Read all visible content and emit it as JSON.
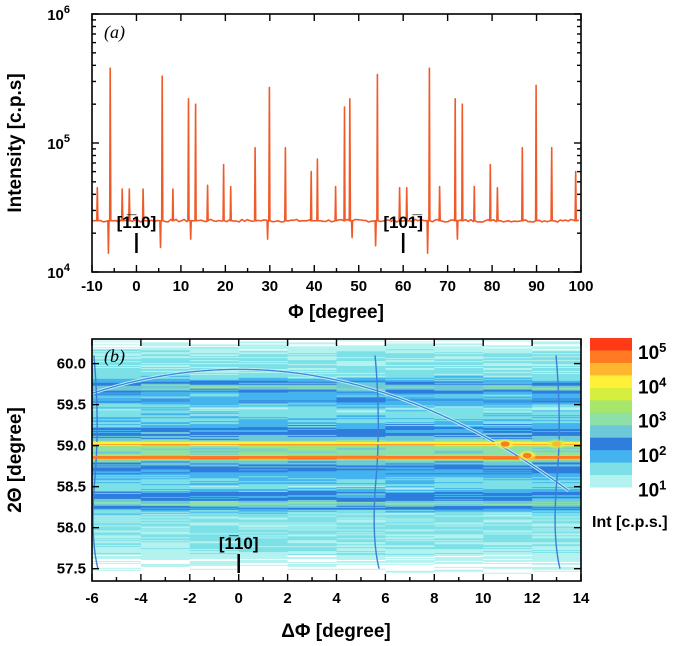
{
  "chart_data": [
    {
      "type": "line",
      "panel_label": "(a)",
      "xlabel": "Φ [degree]",
      "ylabel": "Intensity [c.p.s]",
      "xlim": [
        -10,
        100
      ],
      "ylim": [
        10000,
        1000000
      ],
      "yscale": "log",
      "x_ticks": [
        -10,
        0,
        10,
        20,
        30,
        40,
        50,
        60,
        70,
        80,
        90,
        100
      ],
      "x_tick_labels": [
        "-10",
        "0",
        "10",
        "20",
        "30",
        "40",
        "50",
        "60",
        "70",
        "80",
        "90",
        "100"
      ],
      "y_ticks": [
        10000,
        100000,
        1000000
      ],
      "y_tick_bases": [
        "10",
        "10",
        "10"
      ],
      "y_tick_exponents": [
        "4",
        "5",
        "6"
      ],
      "line_color": "#f05a28",
      "baseline": 25000,
      "series": [
        {
          "name": "phi-scan",
          "peaks": [
            {
              "x": -8.8,
              "y": 45000
            },
            {
              "x": -5.9,
              "y": 380000
            },
            {
              "x": -3.2,
              "y": 44000
            },
            {
              "x": -1.6,
              "y": 44000
            },
            {
              "x": 1.5,
              "y": 44000
            },
            {
              "x": 5.8,
              "y": 330000
            },
            {
              "x": 8.2,
              "y": 44000
            },
            {
              "x": 11.7,
              "y": 220000
            },
            {
              "x": 13.3,
              "y": 200000
            },
            {
              "x": 16.0,
              "y": 47000
            },
            {
              "x": 19.6,
              "y": 68000
            },
            {
              "x": 21.2,
              "y": 46000
            },
            {
              "x": 26.7,
              "y": 92000
            },
            {
              "x": 29.9,
              "y": 270000
            },
            {
              "x": 33.5,
              "y": 92000
            },
            {
              "x": 39.3,
              "y": 60000
            },
            {
              "x": 40.7,
              "y": 75000
            },
            {
              "x": 44.8,
              "y": 46000
            },
            {
              "x": 46.8,
              "y": 190000
            },
            {
              "x": 48.0,
              "y": 220000
            },
            {
              "x": 54.2,
              "y": 340000
            },
            {
              "x": 59.2,
              "y": 45000
            },
            {
              "x": 60.8,
              "y": 45000
            },
            {
              "x": 65.9,
              "y": 380000
            },
            {
              "x": 68.2,
              "y": 46000
            },
            {
              "x": 71.7,
              "y": 220000
            },
            {
              "x": 73.3,
              "y": 200000
            },
            {
              "x": 76.0,
              "y": 46000
            },
            {
              "x": 79.6,
              "y": 68000
            },
            {
              "x": 81.2,
              "y": 45000
            },
            {
              "x": 86.8,
              "y": 92000
            },
            {
              "x": 89.9,
              "y": 280000
            },
            {
              "x": 93.4,
              "y": 92000
            },
            {
              "x": 98.8,
              "y": 60000
            }
          ],
          "dips": [
            {
              "x": -6.3,
              "y": 14000
            },
            {
              "x": 5.4,
              "y": 15500
            },
            {
              "x": 12.2,
              "y": 18000
            },
            {
              "x": 29.5,
              "y": 18000
            },
            {
              "x": 48.5,
              "y": 18500
            },
            {
              "x": 53.8,
              "y": 16000
            },
            {
              "x": 65.5,
              "y": 14000
            },
            {
              "x": 72.2,
              "y": 18000
            }
          ]
        }
      ],
      "annotations": [
        {
          "text": "[1̅10]",
          "x": 0
        },
        {
          "text": "[101̅]",
          "x": 60
        }
      ]
    },
    {
      "type": "heatmap",
      "panel_label": "(b)",
      "xlabel": "ΔΦ [degree]",
      "ylabel": "2Θ [degree]",
      "xlim": [
        -6,
        14
      ],
      "ylim": [
        57.35,
        60.3
      ],
      "x_ticks": [
        -6,
        -4,
        -2,
        0,
        2,
        4,
        6,
        8,
        10,
        12,
        14
      ],
      "x_tick_labels": [
        "-6",
        "-4",
        "-2",
        "0",
        "2",
        "4",
        "6",
        "8",
        "10",
        "12",
        "14"
      ],
      "y_ticks": [
        57.5,
        58.0,
        58.5,
        59.0,
        59.5,
        60.0
      ],
      "y_tick_labels": [
        "57.5",
        "58.0",
        "58.5",
        "59.0",
        "59.5",
        "60.0"
      ],
      "features": {
        "streaks": [
          {
            "two_theta": 59.03,
            "level": 4.3
          },
          {
            "two_theta": 58.86,
            "level": 4.7
          }
        ],
        "arc": {
          "apex_dphi": 0,
          "apex_two_theta": 59.93,
          "end_dphi": 13.5,
          "end_two_theta": 58.45
        },
        "spots": [
          {
            "dphi": 10.9,
            "two_theta": 59.02,
            "level": 5.0
          },
          {
            "dphi": 11.8,
            "two_theta": 58.88,
            "level": 5.0
          },
          {
            "dphi": 13.0,
            "two_theta": 59.02,
            "level": 4.6
          }
        ],
        "vertical_rods": [
          -5.8,
          5.7,
          13.1
        ]
      },
      "annotation": {
        "text": "[1̅10]",
        "x": 0
      },
      "colorbar": {
        "label": "Int [c.p.s.]",
        "tick_bases": [
          "10",
          "10",
          "10",
          "10",
          "10"
        ],
        "tick_exponents": [
          "5",
          "4",
          "3",
          "2",
          "1"
        ],
        "log_min": 0.7,
        "log_max": 5.4,
        "colors": [
          "#ffffff",
          "#b4f2ef",
          "#7de0e7",
          "#45b4ee",
          "#2f7ddd",
          "#6ccad8",
          "#8fe0a8",
          "#a6e66a",
          "#d6ee3e",
          "#fff03a",
          "#ffb52e",
          "#ff7a20",
          "#ff3a16"
        ]
      }
    }
  ]
}
